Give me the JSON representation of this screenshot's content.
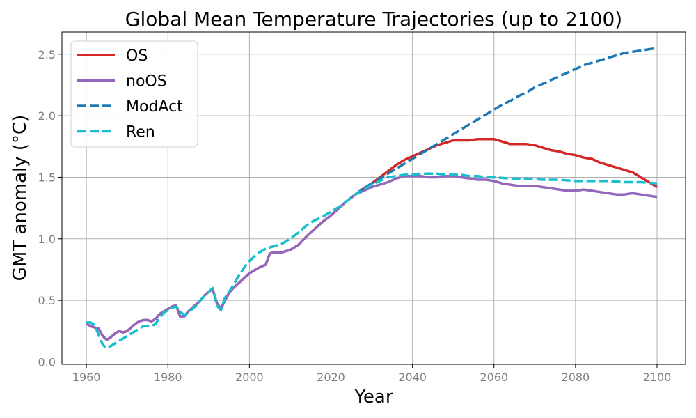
{
  "chart_data": {
    "type": "line",
    "title": "Global Mean Temperature Trajectories (up to 2100)",
    "xlabel": "Year",
    "ylabel": "GMT anomaly (°C)",
    "xlim": [
      1954,
      2107
    ],
    "ylim": [
      -0.02,
      2.68
    ],
    "xticks": [
      1960,
      1980,
      2000,
      2020,
      2040,
      2060,
      2080,
      2100
    ],
    "yticks": [
      0.0,
      0.5,
      1.0,
      1.5,
      2.0,
      2.5
    ],
    "xtick_labels": [
      "1960",
      "1980",
      "2000",
      "2020",
      "2040",
      "2060",
      "2080",
      "2100"
    ],
    "ytick_labels": [
      "0.0",
      "0.5",
      "1.0",
      "1.5",
      "2.0",
      "2.5"
    ],
    "grid": true,
    "legend_position": "top-left",
    "series": [
      {
        "name": "OS",
        "color": "#d62728",
        "style": "solid",
        "points": [
          [
            1960,
            0.31
          ],
          [
            1961,
            0.29
          ],
          [
            1962,
            0.28
          ],
          [
            1963,
            0.27
          ],
          [
            1964,
            0.21
          ],
          [
            1965,
            0.18
          ],
          [
            1966,
            0.2
          ],
          [
            1967,
            0.23
          ],
          [
            1968,
            0.25
          ],
          [
            1969,
            0.24
          ],
          [
            1970,
            0.25
          ],
          [
            1971,
            0.28
          ],
          [
            1972,
            0.31
          ],
          [
            1973,
            0.33
          ],
          [
            1974,
            0.34
          ],
          [
            1975,
            0.34
          ],
          [
            1976,
            0.33
          ],
          [
            1977,
            0.35
          ],
          [
            1978,
            0.39
          ],
          [
            1979,
            0.41
          ],
          [
            1980,
            0.43
          ],
          [
            1981,
            0.45
          ],
          [
            1982,
            0.46
          ],
          [
            1983,
            0.37
          ],
          [
            1984,
            0.37
          ],
          [
            1985,
            0.41
          ],
          [
            1986,
            0.44
          ],
          [
            1987,
            0.47
          ],
          [
            1988,
            0.5
          ],
          [
            1989,
            0.54
          ],
          [
            1990,
            0.57
          ],
          [
            1991,
            0.59
          ],
          [
            1992,
            0.48
          ],
          [
            1993,
            0.43
          ],
          [
            1994,
            0.5
          ],
          [
            1995,
            0.56
          ],
          [
            1996,
            0.6
          ],
          [
            1997,
            0.63
          ],
          [
            1998,
            0.66
          ],
          [
            1999,
            0.69
          ],
          [
            2000,
            0.72
          ],
          [
            2002,
            0.76
          ],
          [
            2004,
            0.79
          ],
          [
            2005,
            0.88
          ],
          [
            2006,
            0.89
          ],
          [
            2008,
            0.89
          ],
          [
            2010,
            0.91
          ],
          [
            2012,
            0.95
          ],
          [
            2014,
            1.02
          ],
          [
            2016,
            1.08
          ],
          [
            2018,
            1.14
          ],
          [
            2020,
            1.19
          ],
          [
            2022,
            1.25
          ],
          [
            2024,
            1.31
          ],
          [
            2026,
            1.36
          ],
          [
            2028,
            1.41
          ],
          [
            2030,
            1.45
          ],
          [
            2032,
            1.5
          ],
          [
            2034,
            1.55
          ],
          [
            2036,
            1.6
          ],
          [
            2038,
            1.64
          ],
          [
            2040,
            1.67
          ],
          [
            2042,
            1.7
          ],
          [
            2044,
            1.73
          ],
          [
            2046,
            1.76
          ],
          [
            2048,
            1.78
          ],
          [
            2050,
            1.8
          ],
          [
            2052,
            1.8
          ],
          [
            2054,
            1.8
          ],
          [
            2056,
            1.81
          ],
          [
            2058,
            1.81
          ],
          [
            2060,
            1.81
          ],
          [
            2062,
            1.79
          ],
          [
            2064,
            1.77
          ],
          [
            2066,
            1.77
          ],
          [
            2068,
            1.77
          ],
          [
            2070,
            1.76
          ],
          [
            2072,
            1.74
          ],
          [
            2074,
            1.72
          ],
          [
            2076,
            1.71
          ],
          [
            2078,
            1.69
          ],
          [
            2080,
            1.68
          ],
          [
            2082,
            1.66
          ],
          [
            2084,
            1.65
          ],
          [
            2086,
            1.62
          ],
          [
            2088,
            1.6
          ],
          [
            2090,
            1.58
          ],
          [
            2092,
            1.56
          ],
          [
            2094,
            1.54
          ],
          [
            2096,
            1.5
          ],
          [
            2098,
            1.46
          ],
          [
            2100,
            1.42
          ]
        ]
      },
      {
        "name": "noOS",
        "color": "#9467bd",
        "style": "solid",
        "points": [
          [
            1960,
            0.31
          ],
          [
            1961,
            0.29
          ],
          [
            1962,
            0.28
          ],
          [
            1963,
            0.27
          ],
          [
            1964,
            0.21
          ],
          [
            1965,
            0.18
          ],
          [
            1966,
            0.2
          ],
          [
            1967,
            0.23
          ],
          [
            1968,
            0.25
          ],
          [
            1969,
            0.24
          ],
          [
            1970,
            0.25
          ],
          [
            1971,
            0.28
          ],
          [
            1972,
            0.31
          ],
          [
            1973,
            0.33
          ],
          [
            1974,
            0.34
          ],
          [
            1975,
            0.34
          ],
          [
            1976,
            0.33
          ],
          [
            1977,
            0.35
          ],
          [
            1978,
            0.39
          ],
          [
            1979,
            0.41
          ],
          [
            1980,
            0.43
          ],
          [
            1981,
            0.45
          ],
          [
            1982,
            0.46
          ],
          [
            1983,
            0.37
          ],
          [
            1984,
            0.37
          ],
          [
            1985,
            0.41
          ],
          [
            1986,
            0.44
          ],
          [
            1987,
            0.47
          ],
          [
            1988,
            0.5
          ],
          [
            1989,
            0.54
          ],
          [
            1990,
            0.57
          ],
          [
            1991,
            0.59
          ],
          [
            1992,
            0.48
          ],
          [
            1993,
            0.43
          ],
          [
            1994,
            0.5
          ],
          [
            1995,
            0.56
          ],
          [
            1996,
            0.6
          ],
          [
            1997,
            0.63
          ],
          [
            1998,
            0.66
          ],
          [
            1999,
            0.69
          ],
          [
            2000,
            0.72
          ],
          [
            2002,
            0.76
          ],
          [
            2004,
            0.79
          ],
          [
            2005,
            0.88
          ],
          [
            2006,
            0.89
          ],
          [
            2008,
            0.89
          ],
          [
            2010,
            0.91
          ],
          [
            2012,
            0.95
          ],
          [
            2014,
            1.02
          ],
          [
            2016,
            1.08
          ],
          [
            2018,
            1.14
          ],
          [
            2020,
            1.19
          ],
          [
            2022,
            1.25
          ],
          [
            2024,
            1.31
          ],
          [
            2026,
            1.36
          ],
          [
            2028,
            1.39
          ],
          [
            2030,
            1.42
          ],
          [
            2032,
            1.44
          ],
          [
            2034,
            1.46
          ],
          [
            2036,
            1.49
          ],
          [
            2038,
            1.51
          ],
          [
            2040,
            1.51
          ],
          [
            2042,
            1.51
          ],
          [
            2044,
            1.5
          ],
          [
            2046,
            1.5
          ],
          [
            2048,
            1.51
          ],
          [
            2050,
            1.51
          ],
          [
            2052,
            1.5
          ],
          [
            2054,
            1.49
          ],
          [
            2056,
            1.48
          ],
          [
            2058,
            1.48
          ],
          [
            2060,
            1.47
          ],
          [
            2062,
            1.45
          ],
          [
            2064,
            1.44
          ],
          [
            2066,
            1.43
          ],
          [
            2068,
            1.43
          ],
          [
            2070,
            1.43
          ],
          [
            2072,
            1.42
          ],
          [
            2074,
            1.41
          ],
          [
            2076,
            1.4
          ],
          [
            2078,
            1.39
          ],
          [
            2080,
            1.39
          ],
          [
            2082,
            1.4
          ],
          [
            2084,
            1.39
          ],
          [
            2086,
            1.38
          ],
          [
            2088,
            1.37
          ],
          [
            2090,
            1.36
          ],
          [
            2092,
            1.36
          ],
          [
            2094,
            1.37
          ],
          [
            2096,
            1.36
          ],
          [
            2098,
            1.35
          ],
          [
            2100,
            1.34
          ]
        ]
      },
      {
        "name": "ModAct",
        "color": "#1f77b4",
        "style": "dashed",
        "points": [
          [
            2026,
            1.36
          ],
          [
            2028,
            1.41
          ],
          [
            2030,
            1.45
          ],
          [
            2032,
            1.49
          ],
          [
            2034,
            1.53
          ],
          [
            2036,
            1.57
          ],
          [
            2038,
            1.61
          ],
          [
            2040,
            1.65
          ],
          [
            2042,
            1.69
          ],
          [
            2044,
            1.73
          ],
          [
            2046,
            1.77
          ],
          [
            2048,
            1.81
          ],
          [
            2050,
            1.85
          ],
          [
            2052,
            1.89
          ],
          [
            2054,
            1.93
          ],
          [
            2056,
            1.97
          ],
          [
            2058,
            2.01
          ],
          [
            2060,
            2.05
          ],
          [
            2062,
            2.09
          ],
          [
            2064,
            2.12
          ],
          [
            2066,
            2.16
          ],
          [
            2068,
            2.19
          ],
          [
            2070,
            2.23
          ],
          [
            2072,
            2.26
          ],
          [
            2074,
            2.29
          ],
          [
            2076,
            2.32
          ],
          [
            2078,
            2.35
          ],
          [
            2080,
            2.38
          ],
          [
            2082,
            2.41
          ],
          [
            2084,
            2.43
          ],
          [
            2086,
            2.45
          ],
          [
            2088,
            2.47
          ],
          [
            2090,
            2.49
          ],
          [
            2092,
            2.51
          ],
          [
            2094,
            2.52
          ],
          [
            2096,
            2.53
          ],
          [
            2098,
            2.54
          ],
          [
            2100,
            2.55
          ]
        ]
      },
      {
        "name": "Ren",
        "color": "#17becf",
        "style": "dashed",
        "points": [
          [
            1960,
            0.32
          ],
          [
            1961,
            0.32
          ],
          [
            1962,
            0.3
          ],
          [
            1963,
            0.22
          ],
          [
            1964,
            0.14
          ],
          [
            1965,
            0.11
          ],
          [
            1966,
            0.13
          ],
          [
            1967,
            0.15
          ],
          [
            1968,
            0.17
          ],
          [
            1969,
            0.19
          ],
          [
            1970,
            0.21
          ],
          [
            1971,
            0.23
          ],
          [
            1972,
            0.25
          ],
          [
            1973,
            0.27
          ],
          [
            1974,
            0.29
          ],
          [
            1975,
            0.29
          ],
          [
            1976,
            0.29
          ],
          [
            1977,
            0.31
          ],
          [
            1978,
            0.36
          ],
          [
            1979,
            0.4
          ],
          [
            1980,
            0.42
          ],
          [
            1981,
            0.44
          ],
          [
            1982,
            0.45
          ],
          [
            1983,
            0.41
          ],
          [
            1984,
            0.38
          ],
          [
            1985,
            0.4
          ],
          [
            1986,
            0.43
          ],
          [
            1987,
            0.46
          ],
          [
            1988,
            0.5
          ],
          [
            1989,
            0.54
          ],
          [
            1990,
            0.57
          ],
          [
            1991,
            0.6
          ],
          [
            1992,
            0.46
          ],
          [
            1993,
            0.42
          ],
          [
            1994,
            0.52
          ],
          [
            1995,
            0.57
          ],
          [
            1996,
            0.62
          ],
          [
            1997,
            0.68
          ],
          [
            1998,
            0.73
          ],
          [
            1999,
            0.78
          ],
          [
            2000,
            0.82
          ],
          [
            2002,
            0.88
          ],
          [
            2004,
            0.92
          ],
          [
            2006,
            0.94
          ],
          [
            2008,
            0.96
          ],
          [
            2010,
            1.0
          ],
          [
            2012,
            1.05
          ],
          [
            2014,
            1.11
          ],
          [
            2016,
            1.15
          ],
          [
            2018,
            1.18
          ],
          [
            2020,
            1.22
          ],
          [
            2022,
            1.26
          ],
          [
            2024,
            1.31
          ],
          [
            2026,
            1.36
          ],
          [
            2028,
            1.4
          ],
          [
            2030,
            1.44
          ],
          [
            2032,
            1.47
          ],
          [
            2034,
            1.5
          ],
          [
            2036,
            1.51
          ],
          [
            2038,
            1.52
          ],
          [
            2040,
            1.52
          ],
          [
            2042,
            1.53
          ],
          [
            2044,
            1.53
          ],
          [
            2046,
            1.53
          ],
          [
            2048,
            1.52
          ],
          [
            2050,
            1.52
          ],
          [
            2052,
            1.52
          ],
          [
            2054,
            1.51
          ],
          [
            2056,
            1.51
          ],
          [
            2058,
            1.5
          ],
          [
            2060,
            1.5
          ],
          [
            2064,
            1.49
          ],
          [
            2068,
            1.49
          ],
          [
            2072,
            1.48
          ],
          [
            2076,
            1.48
          ],
          [
            2080,
            1.47
          ],
          [
            2084,
            1.47
          ],
          [
            2088,
            1.47
          ],
          [
            2092,
            1.46
          ],
          [
            2096,
            1.46
          ],
          [
            2100,
            1.45
          ]
        ]
      }
    ]
  }
}
